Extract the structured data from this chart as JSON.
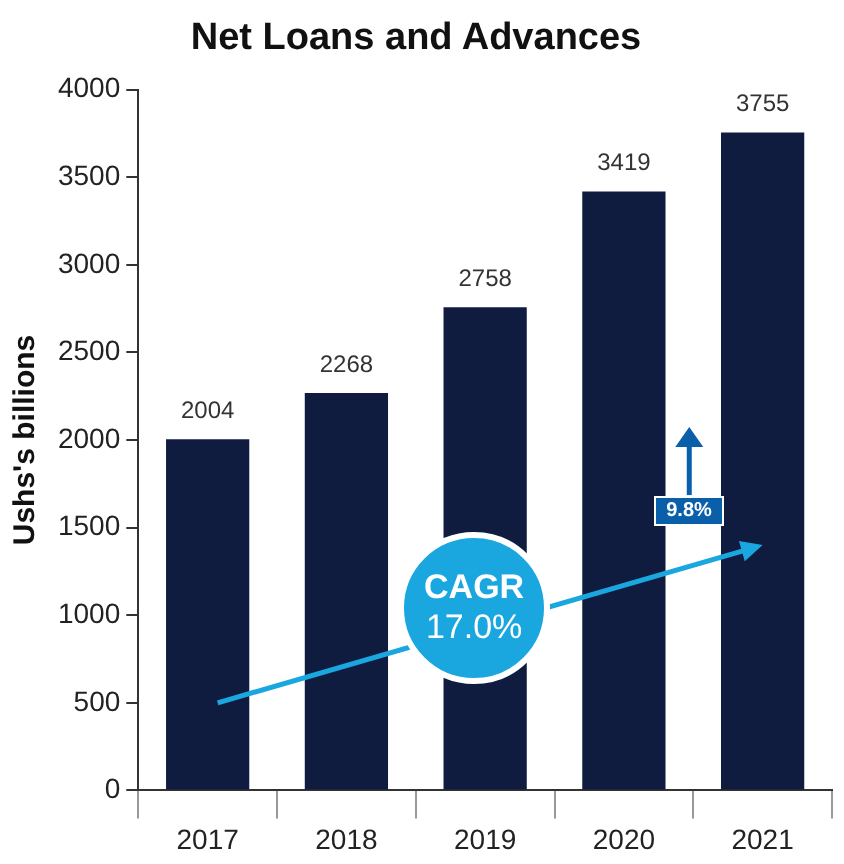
{
  "chart_data": {
    "type": "bar",
    "title": "Net Loans and Advances",
    "ylabel": "Ushs's billions",
    "categories": [
      "2017",
      "2018",
      "2019",
      "2020",
      "2021"
    ],
    "values": [
      2004,
      2268,
      2758,
      3419,
      3755
    ],
    "color": "#0f1c3f",
    "ylim": [
      0,
      4000
    ],
    "yticks": [
      0,
      500,
      1000,
      1500,
      2000,
      2500,
      3000,
      3500,
      4000
    ],
    "grid": false,
    "legend": false,
    "data_labels": true,
    "annotations": [
      "CAGR",
      "17.0%",
      "9.8%"
    ]
  }
}
